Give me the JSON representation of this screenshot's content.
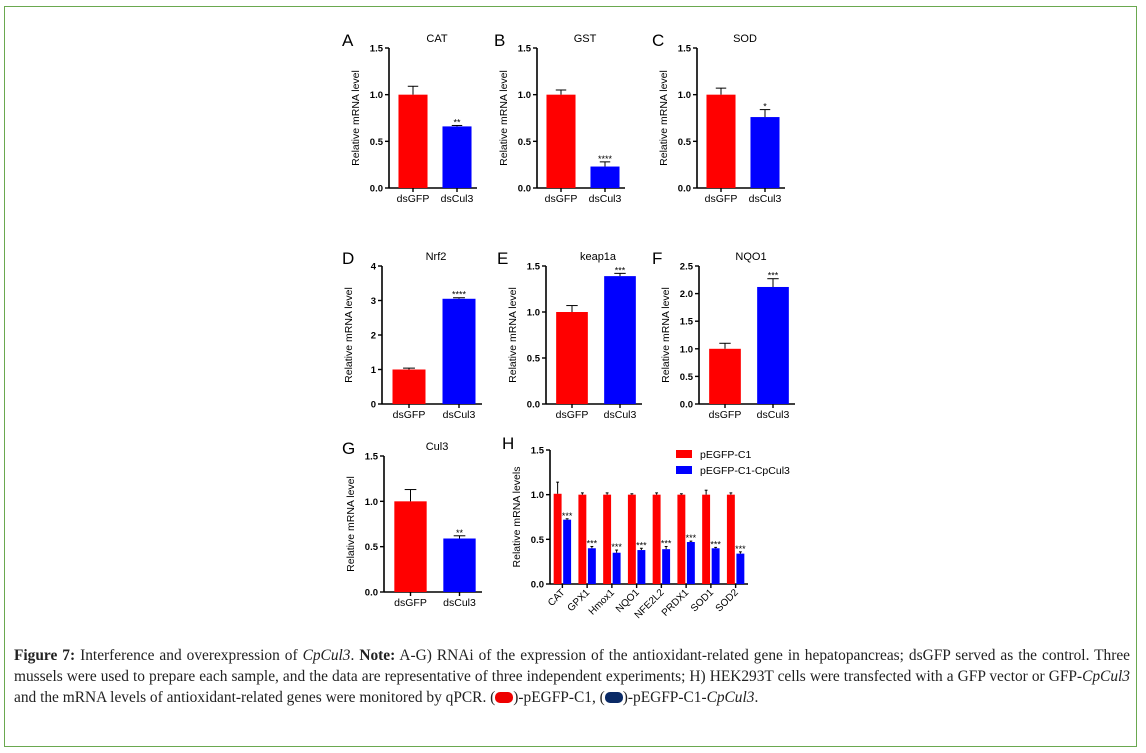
{
  "figure": {
    "caption": {
      "label": "Figure 7:",
      "intro": " Interference and overexpression of ",
      "gene_italic": "CpCul3",
      "intro_end": ". ",
      "note_label": "Note:",
      "text1": " A-G) RNAi of the expression of the antioxidant-related gene in hepatopancreas; dsGFP served as the control. Three mussels were used to prepare each sample, and the data are representative of three independent experiments; H) HEK293T cells were transfected with a GFP vector or GFP-",
      "gene_italic2": "CpCul3",
      "text2": " and the mRNA levels of antioxidant-related genes were monitored by qPCR. (",
      "legend_red_text": ")-pEGFP-C1, (",
      "legend_navy_text": ")-pEGFP-C1-",
      "gene_italic3": "CpCul3",
      "end": ".",
      "colors": {
        "red_swatch": "#ee0000",
        "navy_swatch": "#0a2a66"
      }
    },
    "border_color": "#6aa84f"
  },
  "chart_data": [
    {
      "type": "bar",
      "panel": "A",
      "title": "CAT",
      "categories": [
        "dsGFP",
        "dsCul3"
      ],
      "values": [
        1.0,
        0.66
      ],
      "errors": [
        0.09,
        0.01
      ],
      "significance": [
        "",
        "**"
      ],
      "ylabel": "Relative mRNA level",
      "ylim": [
        0,
        1.5
      ],
      "yticks": [
        "0.0",
        "0.5",
        "1.0",
        "1.5"
      ],
      "ytick_values": [
        0,
        0.5,
        1.0,
        1.5
      ],
      "colors": [
        "#ff0000",
        "#0000ff"
      ]
    },
    {
      "type": "bar",
      "panel": "B",
      "title": "GST",
      "categories": [
        "dsGFP",
        "dsCul3"
      ],
      "values": [
        1.0,
        0.23
      ],
      "errors": [
        0.05,
        0.05
      ],
      "significance": [
        "",
        "****"
      ],
      "ylabel": "Relative mRNA level",
      "ylim": [
        0,
        1.5
      ],
      "yticks": [
        "0.0",
        "0.5",
        "1.0",
        "1.5"
      ],
      "ytick_values": [
        0,
        0.5,
        1.0,
        1.5
      ],
      "colors": [
        "#ff0000",
        "#0000ff"
      ]
    },
    {
      "type": "bar",
      "panel": "C",
      "title": "SOD",
      "categories": [
        "dsGFP",
        "dsCul3"
      ],
      "values": [
        1.0,
        0.76
      ],
      "errors": [
        0.07,
        0.08
      ],
      "significance": [
        "",
        "*"
      ],
      "ylabel": "Relative mRNA level",
      "ylim": [
        0,
        1.5
      ],
      "yticks": [
        "0.0",
        "0.5",
        "1.0",
        "1.5"
      ],
      "ytick_values": [
        0,
        0.5,
        1.0,
        1.5
      ],
      "colors": [
        "#ff0000",
        "#0000ff"
      ]
    },
    {
      "type": "bar",
      "panel": "D",
      "title": "Nrf2",
      "categories": [
        "dsGFP",
        "dsCul3"
      ],
      "values": [
        1.0,
        3.05
      ],
      "errors": [
        0.04,
        0.03
      ],
      "significance": [
        "",
        "****"
      ],
      "ylabel": "Relative mRNA level",
      "ylim": [
        0,
        4
      ],
      "yticks": [
        "0",
        "1",
        "2",
        "3",
        "4"
      ],
      "ytick_values": [
        0,
        1,
        2,
        3,
        4
      ],
      "colors": [
        "#ff0000",
        "#0000ff"
      ]
    },
    {
      "type": "bar",
      "panel": "E",
      "title": "keap1a",
      "categories": [
        "dsGFP",
        "dsCul3"
      ],
      "values": [
        1.0,
        1.39
      ],
      "errors": [
        0.07,
        0.03
      ],
      "significance": [
        "",
        "***"
      ],
      "ylabel": "Relative mRNA level",
      "ylim": [
        0,
        1.5
      ],
      "yticks": [
        "0.0",
        "0.5",
        "1.0",
        "1.5"
      ],
      "ytick_values": [
        0,
        0.5,
        1.0,
        1.5
      ],
      "colors": [
        "#ff0000",
        "#0000ff"
      ]
    },
    {
      "type": "bar",
      "panel": "F",
      "title": "NQO1",
      "categories": [
        "dsGFP",
        "dsCul3"
      ],
      "values": [
        1.0,
        2.12
      ],
      "errors": [
        0.1,
        0.15
      ],
      "significance": [
        "",
        "***"
      ],
      "ylabel": "Relative mRNA level",
      "ylim": [
        0,
        2.5
      ],
      "yticks": [
        "0.0",
        "0.5",
        "1.0",
        "1.5",
        "2.0",
        "2.5"
      ],
      "ytick_values": [
        0,
        0.5,
        1.0,
        1.5,
        2.0,
        2.5
      ],
      "colors": [
        "#ff0000",
        "#0000ff"
      ]
    },
    {
      "type": "bar",
      "panel": "G",
      "title": "Cul3",
      "categories": [
        "dsGFP",
        "dsCul3"
      ],
      "values": [
        1.0,
        0.59
      ],
      "errors": [
        0.13,
        0.03
      ],
      "significance": [
        "",
        "**"
      ],
      "ylabel": "Relative mRNA level",
      "ylim": [
        0,
        1.5
      ],
      "yticks": [
        "0.0",
        "0.5",
        "1.0",
        "1.5"
      ],
      "ytick_values": [
        0,
        0.5,
        1.0,
        1.5
      ],
      "colors": [
        "#ff0000",
        "#0000ff"
      ]
    },
    {
      "type": "bar",
      "panel": "H",
      "title": "",
      "categories": [
        "CAT",
        "GPX1",
        "Hmox1",
        "NQO1",
        "NFE2L2",
        "PRDX1",
        "SOD1",
        "SOD2"
      ],
      "series": [
        {
          "name": "pEGFP-C1",
          "color": "#ff0000",
          "values": [
            1.01,
            1.0,
            1.0,
            1.0,
            1.0,
            1.0,
            1.0,
            1.0
          ],
          "errors": [
            0.13,
            0.02,
            0.02,
            0.01,
            0.02,
            0.01,
            0.05,
            0.02
          ]
        },
        {
          "name": "pEGFP-C1-CpCul3",
          "color": "#0000ff",
          "values": [
            0.72,
            0.4,
            0.35,
            0.38,
            0.39,
            0.47,
            0.4,
            0.34
          ],
          "errors": [
            0.01,
            0.02,
            0.03,
            0.02,
            0.03,
            0.01,
            0.01,
            0.02
          ],
          "significance": [
            "***",
            "***",
            "***",
            "***",
            "***",
            "***",
            "***",
            "***"
          ]
        }
      ],
      "ylabel": "Relative mRNA levels",
      "ylim": [
        0,
        1.5
      ],
      "yticks": [
        "0.0",
        "0.5",
        "1.0",
        "1.5"
      ],
      "ytick_values": [
        0,
        0.5,
        1.0,
        1.5
      ],
      "legend": "top-right"
    }
  ]
}
